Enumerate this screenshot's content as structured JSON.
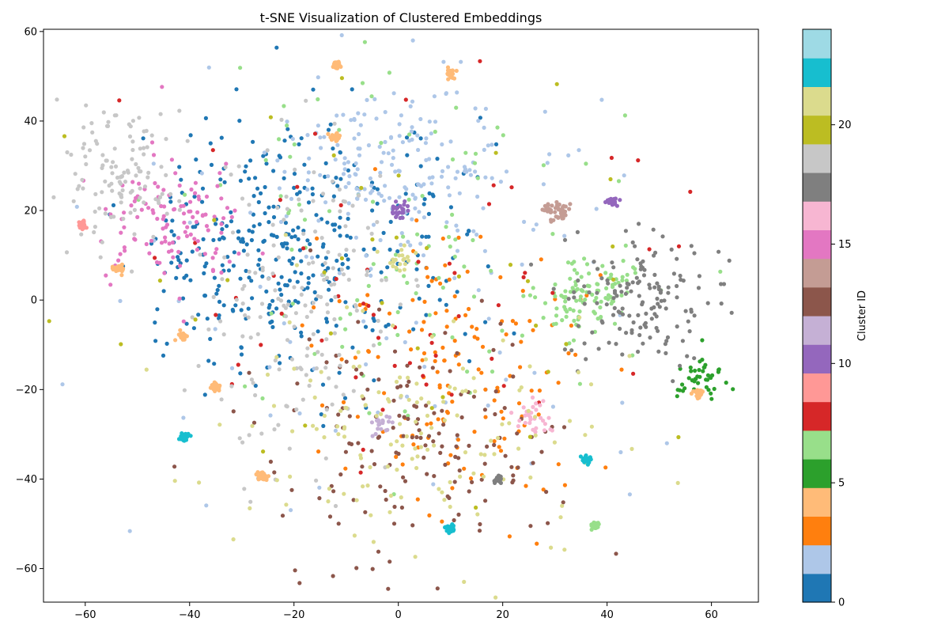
{
  "chart_data": {
    "type": "scatter",
    "title": "t-SNE Visualization of Clustered Embeddings",
    "xlabel": "",
    "ylabel": "",
    "xlim": [
      -68,
      69
    ],
    "ylim": [
      -67.5,
      60.5
    ],
    "xticks": [
      "−60",
      "−40",
      "−20",
      "0",
      "20",
      "40",
      "60"
    ],
    "xtick_values": [
      -60,
      -40,
      -20,
      0,
      20,
      40,
      60
    ],
    "yticks": [
      "−60",
      "−40",
      "−20",
      "0",
      "20",
      "40",
      "60"
    ],
    "ytick_values": [
      -60,
      -40,
      -20,
      0,
      20,
      40,
      60
    ],
    "grid": false,
    "marker_size_note": "small circles",
    "colorbar": {
      "label": "Cluster ID",
      "range": [
        0,
        24
      ],
      "ticks": [
        "0",
        "5",
        "10",
        "15",
        "20"
      ],
      "tick_values": [
        0,
        5,
        10,
        15,
        20
      ],
      "colors": [
        "#1f77b4",
        "#aec7e8",
        "#ff7f0e",
        "#ffbb78",
        "#2ca02c",
        "#98df8a",
        "#d62728",
        "#ff9896",
        "#9467bd",
        "#c5b0d5",
        "#8c564b",
        "#c49c94",
        "#e377c2",
        "#f7b6d2",
        "#7f7f7f",
        "#c7c7c7",
        "#bcbd22",
        "#dbdb8d",
        "#17becf",
        "#9edae5"
      ]
    },
    "clusters": [
      {
        "id": 0,
        "cx": -28,
        "cy": 12,
        "sx": 12,
        "sy": 15,
        "n": 230
      },
      {
        "id": 1,
        "cx": -8,
        "cy": 12,
        "sx": 12,
        "sy": 15,
        "n": 150
      },
      {
        "id": 2,
        "cx": 0,
        "cy": 30,
        "sx": 14,
        "sy": 10,
        "n": 190
      },
      {
        "id": 2,
        "cx": 0,
        "cy": -5,
        "sx": 28,
        "sy": 25,
        "n": 70
      },
      {
        "id": 3,
        "cx": 12,
        "cy": -15,
        "sx": 14,
        "sy": 17,
        "n": 150
      },
      {
        "id": 5,
        "cx": 58,
        "cy": -18,
        "sx": 2.8,
        "sy": 2.8,
        "n": 45
      },
      {
        "id": 6,
        "cx": 34,
        "cy": 0,
        "sx": 3.5,
        "sy": 4,
        "n": 80
      },
      {
        "id": 6,
        "cx": 41,
        "cy": 4,
        "sx": 2.5,
        "sy": 2.5,
        "n": 25
      },
      {
        "id": 7,
        "cx": 5,
        "cy": 12,
        "sx": 22,
        "sy": 22,
        "n": 110
      },
      {
        "id": 8,
        "cx": 0,
        "cy": 0,
        "sx": 25,
        "sy": 18,
        "n": 60
      },
      {
        "id": 10,
        "cx": 0,
        "cy": 20,
        "sx": 1,
        "sy": 1,
        "n": 25
      },
      {
        "id": 11,
        "cx": -3,
        "cy": -28,
        "sx": 1.2,
        "sy": 1.2,
        "n": 20
      },
      {
        "id": 12,
        "cx": 6,
        "cy": -32,
        "sx": 14,
        "sy": 14,
        "n": 160
      },
      {
        "id": 14,
        "cx": 30,
        "cy": 19.5,
        "sx": 1.1,
        "sy": 1.1,
        "n": 45
      },
      {
        "id": 15,
        "cx": -43,
        "cy": 19,
        "sx": 7,
        "sy": 7,
        "n": 120
      },
      {
        "id": 16,
        "cx": 26,
        "cy": -26,
        "sx": 2,
        "sy": 2,
        "n": 30
      },
      {
        "id": 17,
        "cx": 46,
        "cy": 0,
        "sx": 7,
        "sy": 8,
        "n": 150
      },
      {
        "id": 18,
        "cx": -18,
        "cy": 0,
        "sx": 9,
        "sy": 18,
        "n": 170
      },
      {
        "id": 19,
        "cx": -53,
        "cy": 28,
        "sx": 6,
        "sy": 8,
        "n": 120
      },
      {
        "id": 20,
        "cx": 0,
        "cy": 10,
        "sx": 30,
        "sy": 22,
        "n": 40
      },
      {
        "id": 21,
        "cx": 2,
        "cy": -32,
        "sx": 20,
        "sy": 14,
        "n": 150
      },
      {
        "id": 21,
        "cx": 0,
        "cy": 9,
        "sx": 1.5,
        "sy": 1.5,
        "n": 20
      }
    ],
    "dense_blobs": [
      {
        "id": 4,
        "x": -12,
        "y": 52.5
      },
      {
        "id": 4,
        "x": 10,
        "y": 50.5
      },
      {
        "id": 4,
        "x": -12,
        "y": 36.5
      },
      {
        "id": 4,
        "x": -41.5,
        "y": -8
      },
      {
        "id": 4,
        "x": -53.5,
        "y": 7
      },
      {
        "id": 4,
        "x": -35,
        "y": -19.5
      },
      {
        "id": 4,
        "x": -26,
        "y": -39.5
      },
      {
        "id": 9,
        "x": -60.5,
        "y": 17
      },
      {
        "id": 4,
        "x": 57.5,
        "y": -21
      },
      {
        "id": 7,
        "x": 37.5,
        "y": -50.5
      },
      {
        "id": 22,
        "x": -41,
        "y": -30.5
      },
      {
        "id": 22,
        "x": 36,
        "y": -35.5
      },
      {
        "id": 22,
        "x": 10,
        "y": -51
      },
      {
        "id": 17,
        "x": 19,
        "y": -40
      },
      {
        "id": 10,
        "x": 41,
        "y": 22
      }
    ]
  }
}
